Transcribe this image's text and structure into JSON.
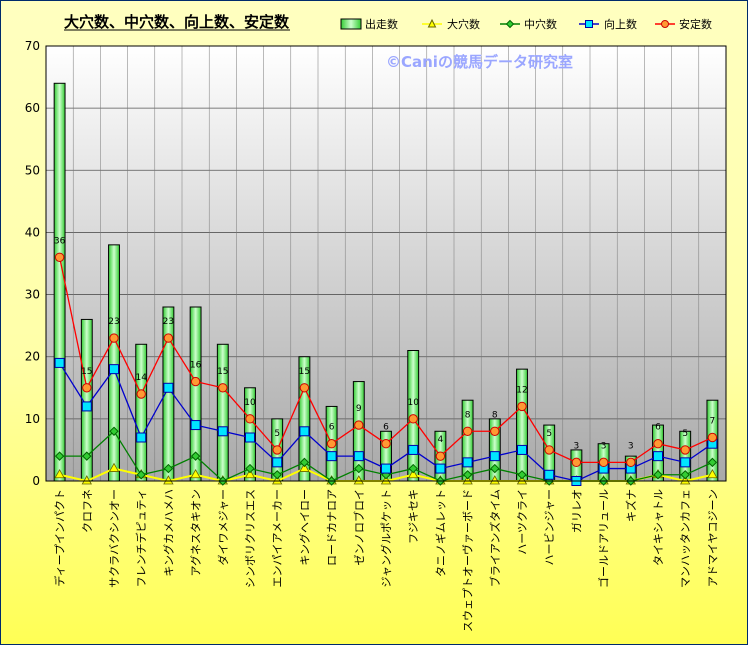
{
  "chart_data": {
    "type": "bar",
    "title": "大穴数、中穴数、向上数、安定数",
    "watermark": "©Caniの競馬データ研究室",
    "ylim": [
      0,
      70
    ],
    "yticks": [
      0,
      10,
      20,
      30,
      40,
      50,
      60,
      70
    ],
    "grid": true,
    "legend_position": "top-right",
    "categories": [
      "ディープインパクト",
      "クロフネ",
      "サクラバクシンオー",
      "フレンチデピュティ",
      "キングカメハメハ",
      "アグネスタキオン",
      "ダイワメジャー",
      "シンボリクリスエス",
      "エンパイアメーカー",
      "キングヘイロー",
      "ロードカナロア",
      "ゼンノロブロイ",
      "ジャングルポケット",
      "フジキセキ",
      "タニノギムレット",
      "スウェプトオーヴァーボード",
      "ブライアンズタイム",
      "ハーツクライ",
      "ハービンジャー",
      "ガリレオ",
      "ゴールドアリュール",
      "キズナ",
      "タイキシャトル",
      "マンハッタンカフェ",
      "アドマイヤコジーン"
    ],
    "series": [
      {
        "name": "出走数",
        "kind": "bar",
        "color": "#66ff66",
        "values": [
          64,
          26,
          38,
          22,
          28,
          28,
          22,
          15,
          10,
          20,
          12,
          16,
          8,
          21,
          8,
          13,
          10,
          18,
          9,
          5,
          6,
          4,
          9,
          8,
          13
        ]
      },
      {
        "name": "大穴数",
        "kind": "line",
        "marker": "triangle",
        "color": "#ffff00",
        "values": [
          1,
          0,
          2,
          1,
          0,
          1,
          0,
          1,
          0,
          2,
          0,
          0,
          0,
          1,
          0,
          0,
          0,
          0,
          0,
          0,
          0,
          0,
          1,
          0,
          1
        ]
      },
      {
        "name": "中穴数",
        "kind": "line",
        "marker": "diamond",
        "color": "#008000",
        "values": [
          4,
          4,
          8,
          1,
          2,
          4,
          0,
          2,
          1,
          3,
          0,
          2,
          1,
          2,
          0,
          1,
          2,
          1,
          0,
          0,
          0,
          0,
          1,
          1,
          3
        ]
      },
      {
        "name": "向上数",
        "kind": "line",
        "marker": "square",
        "color": "#0000cc",
        "values": [
          19,
          12,
          18,
          7,
          15,
          9,
          8,
          7,
          3,
          8,
          4,
          4,
          2,
          5,
          2,
          3,
          4,
          5,
          1,
          0,
          2,
          2,
          4,
          3,
          6
        ]
      },
      {
        "name": "安定数",
        "kind": "line",
        "marker": "circle",
        "color": "#ff0000",
        "values": [
          36,
          15,
          23,
          14,
          23,
          16,
          15,
          10,
          5,
          15,
          6,
          9,
          6,
          10,
          4,
          8,
          8,
          12,
          5,
          3,
          3,
          3,
          6,
          5,
          7
        ]
      }
    ]
  }
}
